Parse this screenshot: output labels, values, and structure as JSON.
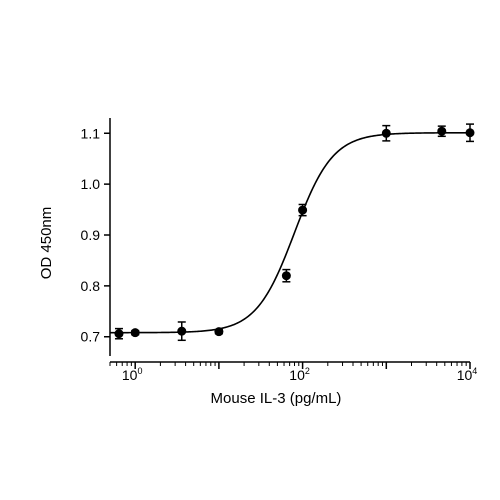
{
  "chart_data": {
    "type": "scatter",
    "x_scale": "log",
    "xlabel": "Mouse IL-3 (pg/mL)",
    "ylabel": "OD 450nm",
    "xlim": [
      0.5,
      10000
    ],
    "ylim": [
      0.67,
      1.13
    ],
    "x_ticks": [
      {
        "value": 1,
        "base": "10",
        "exp": "0"
      },
      {
        "value": 100,
        "base": "10",
        "exp": "2"
      },
      {
        "value": 10000,
        "base": "10",
        "exp": "4"
      }
    ],
    "y_ticks": [
      {
        "value": 0.7,
        "label": "0.7"
      },
      {
        "value": 0.8,
        "label": "0.8"
      },
      {
        "value": 0.9,
        "label": "0.9"
      },
      {
        "value": 1.0,
        "label": "1.0"
      },
      {
        "value": 1.1,
        "label": "1.1"
      }
    ],
    "points": [
      {
        "x": 0.64,
        "y": 0.706,
        "err": 0.01
      },
      {
        "x": 1.0,
        "y": 0.708,
        "err": 0.004
      },
      {
        "x": 3.6,
        "y": 0.711,
        "err": 0.018
      },
      {
        "x": 10.0,
        "y": 0.71,
        "err": 0.004
      },
      {
        "x": 64.0,
        "y": 0.82,
        "err": 0.012
      },
      {
        "x": 100.0,
        "y": 0.949,
        "err": 0.011
      },
      {
        "x": 1000.0,
        "y": 1.1,
        "err": 0.015
      },
      {
        "x": 4600.0,
        "y": 1.104,
        "err": 0.01
      },
      {
        "x": 10000.0,
        "y": 1.101,
        "err": 0.017
      }
    ],
    "fit": {
      "bottom": 0.708,
      "top": 1.101,
      "ec50": 80,
      "hill": 1.9
    },
    "grid": false,
    "colors": {
      "marker": "#000000",
      "line": "#000000"
    }
  }
}
